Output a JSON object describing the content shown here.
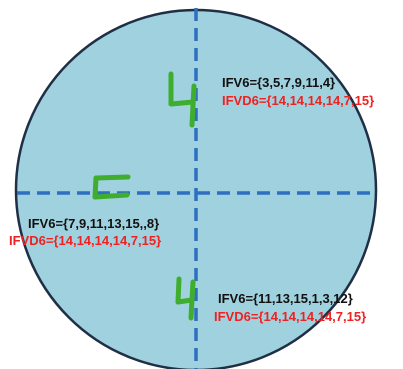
{
  "colors": {
    "circle_fill": "#9fd1de",
    "circle_stroke": "#1f2f45",
    "axis": "#2f6fbf",
    "handwriting": "#3fae2e",
    "ifv_text": "#111111",
    "ifvd_text": "#ee2222"
  },
  "axes": {
    "style": "dashed"
  },
  "handwritten": {
    "top": "4",
    "left": "5",
    "bottom": "4"
  },
  "labels": {
    "top_right": {
      "ifv": "IFV6={3,5,7,9,11,4}",
      "ifvd": "IFVD6={14,14,14,14,7,15}"
    },
    "left": {
      "ifv": "IFV6={7,9,11,13,15,,8}",
      "ifvd": "IFVD6={14,14,14,14,7,15}"
    },
    "bottom_right": {
      "ifv": "IFV6={11,13,15,1,3,12}",
      "ifvd": "IFVD6={14,14,14,14,7,15}"
    }
  }
}
